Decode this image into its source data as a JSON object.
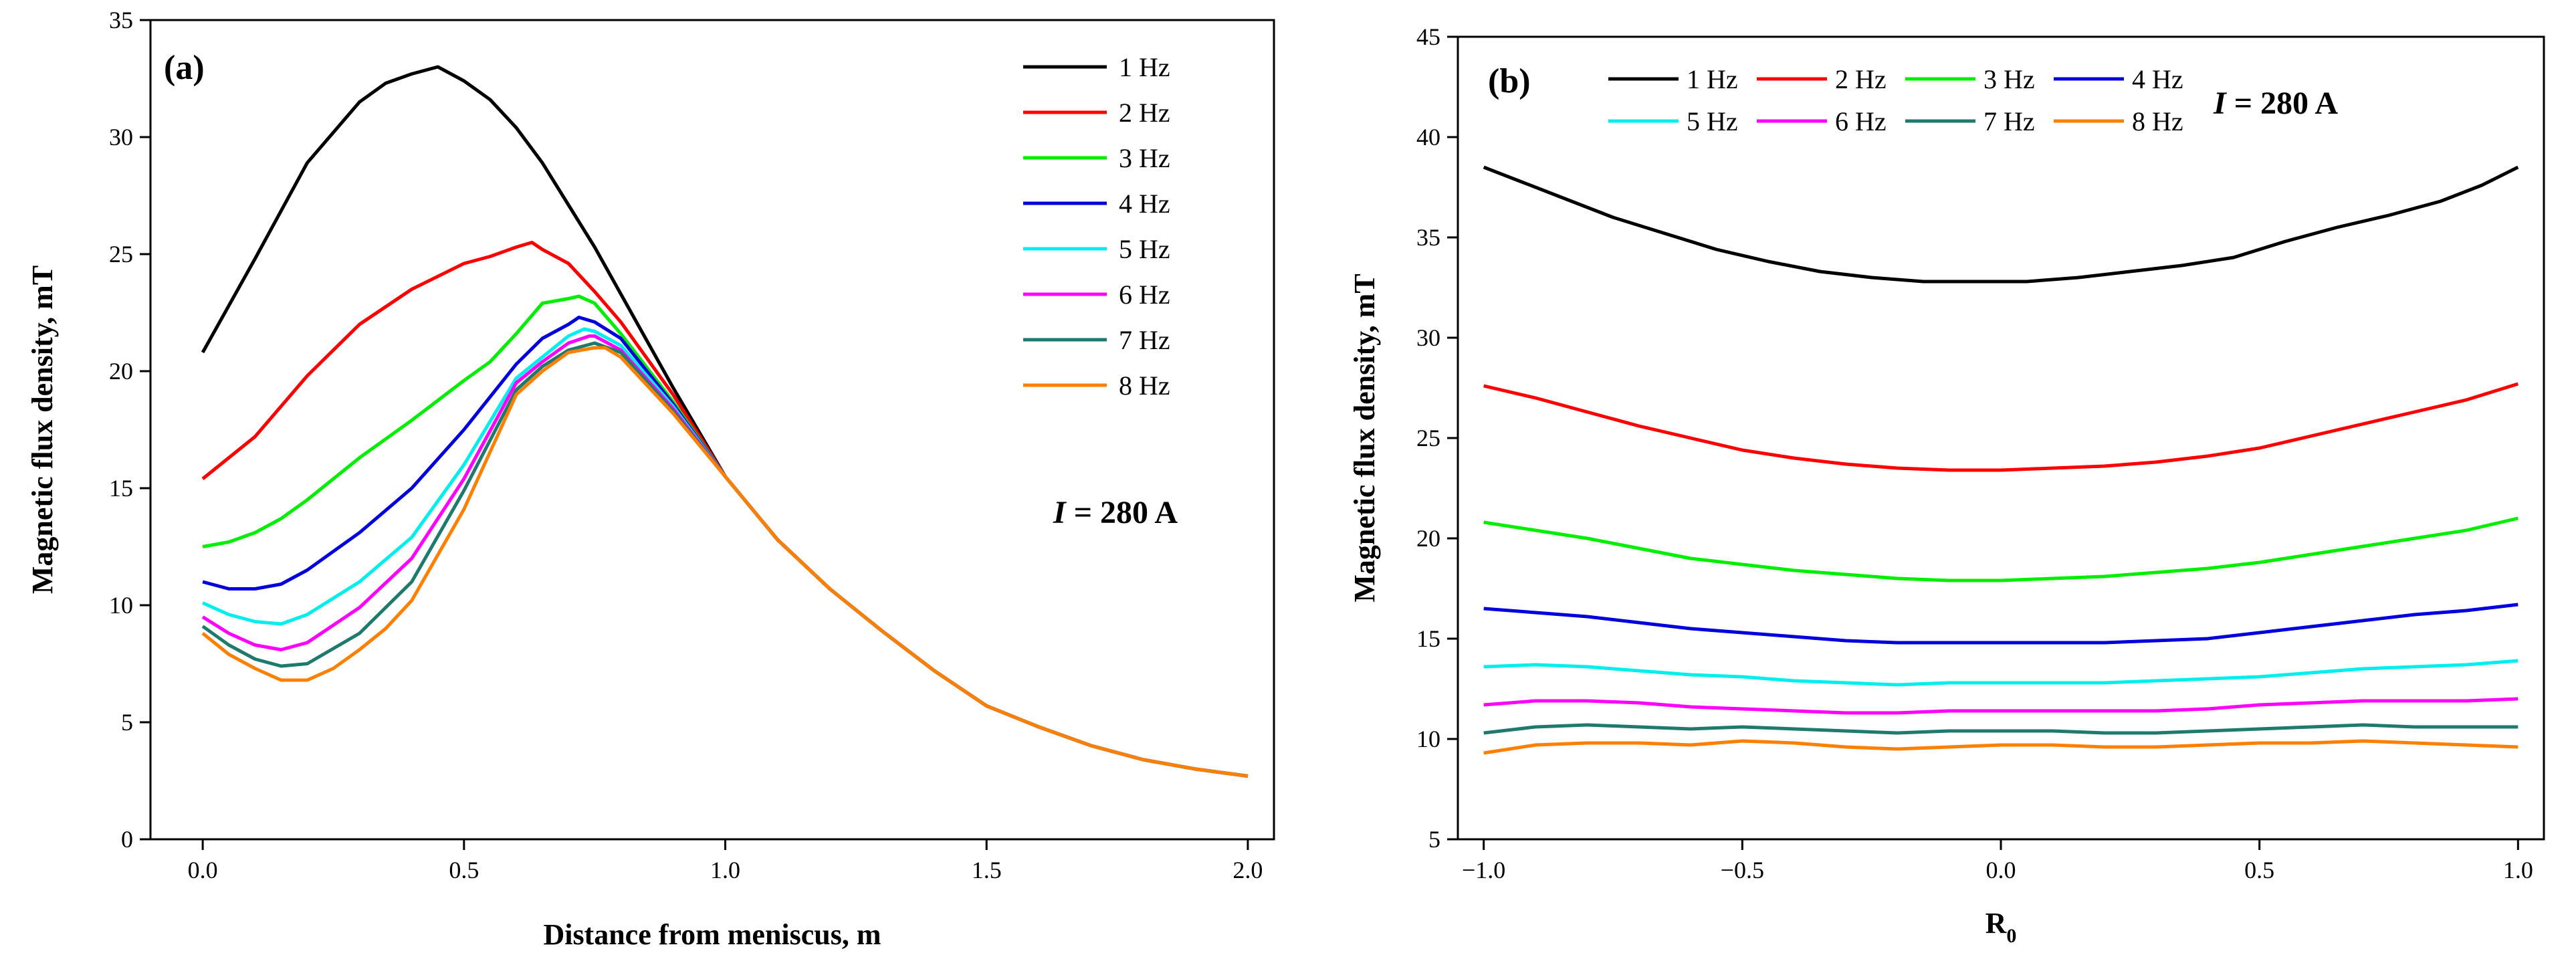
{
  "chart_data": [
    {
      "type": "line",
      "panel_label": "(a)",
      "xlabel": "Distance from meniscus, m",
      "ylabel": "Magnetic flux density, mT",
      "xlim": [
        -0.1,
        2.05
      ],
      "ylim": [
        0,
        35
      ],
      "xticks": [
        0.0,
        0.5,
        1.0,
        1.5,
        2.0
      ],
      "xtick_labels": [
        "0.0",
        "0.5",
        "1.0",
        "1.5",
        "2.0"
      ],
      "yticks": [
        0,
        5,
        10,
        15,
        20,
        25,
        30,
        35
      ],
      "ytick_labels": [
        "0",
        "5",
        "10",
        "15",
        "20",
        "25",
        "30",
        "35"
      ],
      "annotation": {
        "italic": "I",
        "rest": " = 280 A"
      },
      "legend_position": "top-right",
      "series": [
        {
          "name": "1 Hz",
          "color": "#000000",
          "x": [
            0,
            0.1,
            0.2,
            0.3,
            0.35,
            0.4,
            0.45,
            0.5,
            0.55,
            0.6,
            0.65,
            0.7,
            0.75,
            0.8,
            0.9,
            1.0,
            1.1,
            1.2,
            1.3,
            1.4,
            1.5,
            1.6,
            1.7,
            1.8,
            1.9,
            2.0
          ],
          "y": [
            20.8,
            24.8,
            28.9,
            31.5,
            32.3,
            32.7,
            33.0,
            32.4,
            31.6,
            30.4,
            28.9,
            27.1,
            25.3,
            23.3,
            19.3,
            15.5,
            12.8,
            10.7,
            8.9,
            7.2,
            5.7,
            4.8,
            4.0,
            3.4,
            3.0,
            2.7
          ]
        },
        {
          "name": "2 Hz",
          "color": "#ff0000",
          "x": [
            0,
            0.1,
            0.2,
            0.3,
            0.4,
            0.5,
            0.55,
            0.6,
            0.63,
            0.65,
            0.7,
            0.75,
            0.8,
            0.9,
            1.0,
            1.1,
            1.2,
            1.3,
            1.4,
            1.5,
            1.6,
            1.7,
            1.8,
            1.9,
            2.0
          ],
          "y": [
            15.4,
            17.2,
            19.8,
            22.0,
            23.5,
            24.6,
            24.9,
            25.3,
            25.5,
            25.2,
            24.6,
            23.4,
            22.1,
            19.0,
            15.5,
            12.8,
            10.7,
            8.9,
            7.2,
            5.7,
            4.8,
            4.0,
            3.4,
            3.0,
            2.7
          ]
        },
        {
          "name": "3 Hz",
          "color": "#00ee00",
          "x": [
            0,
            0.05,
            0.1,
            0.15,
            0.2,
            0.3,
            0.4,
            0.5,
            0.55,
            0.6,
            0.65,
            0.7,
            0.72,
            0.75,
            0.8,
            0.9,
            1.0,
            1.1,
            1.2,
            1.3,
            1.4,
            1.5,
            1.6,
            1.7,
            1.8,
            1.9,
            2.0
          ],
          "y": [
            12.5,
            12.7,
            13.1,
            13.7,
            14.5,
            16.3,
            17.9,
            19.6,
            20.4,
            21.6,
            22.9,
            23.1,
            23.2,
            22.9,
            21.6,
            18.7,
            15.5,
            12.8,
            10.7,
            8.9,
            7.2,
            5.7,
            4.8,
            4.0,
            3.4,
            3.0,
            2.7
          ]
        },
        {
          "name": "4 Hz",
          "color": "#0000dd",
          "x": [
            0,
            0.05,
            0.1,
            0.15,
            0.2,
            0.3,
            0.4,
            0.5,
            0.6,
            0.65,
            0.7,
            0.72,
            0.75,
            0.8,
            0.9,
            1.0,
            1.1,
            1.2,
            1.3,
            1.4,
            1.5,
            1.6,
            1.7,
            1.8,
            1.9,
            2.0
          ],
          "y": [
            11.0,
            10.7,
            10.7,
            10.9,
            11.5,
            13.1,
            15.0,
            17.5,
            20.3,
            21.4,
            22.0,
            22.3,
            22.1,
            21.4,
            18.6,
            15.5,
            12.8,
            10.7,
            8.9,
            7.2,
            5.7,
            4.8,
            4.0,
            3.4,
            3.0,
            2.7
          ]
        },
        {
          "name": "5 Hz",
          "color": "#00eeee",
          "x": [
            0,
            0.05,
            0.1,
            0.15,
            0.2,
            0.3,
            0.4,
            0.5,
            0.6,
            0.65,
            0.7,
            0.73,
            0.75,
            0.8,
            0.9,
            1.0,
            1.1,
            1.2,
            1.3,
            1.4,
            1.5,
            1.6,
            1.7,
            1.8,
            1.9,
            2.0
          ],
          "y": [
            10.1,
            9.6,
            9.3,
            9.2,
            9.6,
            11.0,
            12.9,
            16.0,
            19.7,
            20.6,
            21.5,
            21.8,
            21.7,
            21.1,
            18.5,
            15.5,
            12.8,
            10.7,
            8.9,
            7.2,
            5.7,
            4.8,
            4.0,
            3.4,
            3.0,
            2.7
          ]
        },
        {
          "name": "6 Hz",
          "color": "#ff00ff",
          "x": [
            0,
            0.05,
            0.1,
            0.15,
            0.2,
            0.3,
            0.4,
            0.5,
            0.6,
            0.65,
            0.7,
            0.74,
            0.75,
            0.8,
            0.9,
            1.0,
            1.1,
            1.2,
            1.3,
            1.4,
            1.5,
            1.6,
            1.7,
            1.8,
            1.9,
            2.0
          ],
          "y": [
            9.5,
            8.8,
            8.3,
            8.1,
            8.4,
            9.9,
            12.0,
            15.4,
            19.5,
            20.4,
            21.2,
            21.5,
            21.5,
            20.9,
            18.4,
            15.5,
            12.8,
            10.7,
            8.9,
            7.2,
            5.7,
            4.8,
            4.0,
            3.4,
            3.0,
            2.7
          ]
        },
        {
          "name": "7 Hz",
          "color": "#1f7a6e",
          "x": [
            0,
            0.05,
            0.1,
            0.15,
            0.2,
            0.3,
            0.4,
            0.5,
            0.6,
            0.65,
            0.7,
            0.75,
            0.8,
            0.9,
            1.0,
            1.1,
            1.2,
            1.3,
            1.4,
            1.5,
            1.6,
            1.7,
            1.8,
            1.9,
            2.0
          ],
          "y": [
            9.1,
            8.3,
            7.7,
            7.4,
            7.5,
            8.8,
            11.0,
            14.9,
            19.2,
            20.2,
            20.9,
            21.2,
            20.8,
            18.3,
            15.5,
            12.8,
            10.7,
            8.9,
            7.2,
            5.7,
            4.8,
            4.0,
            3.4,
            3.0,
            2.7
          ]
        },
        {
          "name": "8 Hz",
          "color": "#ff7f00",
          "x": [
            0,
            0.05,
            0.1,
            0.15,
            0.2,
            0.25,
            0.3,
            0.35,
            0.4,
            0.5,
            0.6,
            0.65,
            0.7,
            0.75,
            0.77,
            0.8,
            0.9,
            1.0,
            1.1,
            1.2,
            1.3,
            1.4,
            1.5,
            1.6,
            1.7,
            1.8,
            1.9,
            2.0
          ],
          "y": [
            8.8,
            7.9,
            7.3,
            6.8,
            6.8,
            7.3,
            8.1,
            9.0,
            10.2,
            14.1,
            19.0,
            20.0,
            20.8,
            21.0,
            21.0,
            20.6,
            18.2,
            15.5,
            12.8,
            10.7,
            8.9,
            7.2,
            5.7,
            4.8,
            4.0,
            3.4,
            3.0,
            2.7
          ]
        }
      ]
    },
    {
      "type": "line",
      "panel_label": "(b)",
      "xlabel": "R",
      "xlabel_subscript": "0",
      "ylabel": "Magnetic flux density, mT",
      "xlim": [
        -1.05,
        1.05
      ],
      "ylim": [
        5,
        45
      ],
      "xticks": [
        -1.0,
        -0.5,
        0.0,
        0.5,
        1.0
      ],
      "xtick_labels": [
        "−1.0",
        "−0.5",
        "0.0",
        "0.5",
        "1.0"
      ],
      "yticks": [
        5,
        10,
        15,
        20,
        25,
        30,
        35,
        40,
        45
      ],
      "ytick_labels": [
        "5",
        "10",
        "15",
        "20",
        "25",
        "30",
        "35",
        "40",
        "45"
      ],
      "annotation": {
        "italic": "I",
        "rest": " = 280 A"
      },
      "legend_position": "top-left",
      "series": [
        {
          "name": "1 Hz",
          "color": "#000000",
          "x": [
            -1.0,
            -0.93,
            -0.85,
            -0.75,
            -0.65,
            -0.55,
            -0.45,
            -0.35,
            -0.25,
            -0.15,
            -0.05,
            0.05,
            0.15,
            0.25,
            0.35,
            0.45,
            0.55,
            0.65,
            0.75,
            0.85,
            0.93,
            1.0
          ],
          "y": [
            38.5,
            37.8,
            37.0,
            36.0,
            35.2,
            34.4,
            33.8,
            33.3,
            33.0,
            32.8,
            32.8,
            32.8,
            33.0,
            33.3,
            33.6,
            34.0,
            34.8,
            35.5,
            36.1,
            36.8,
            37.6,
            38.5
          ]
        },
        {
          "name": "2 Hz",
          "color": "#ff0000",
          "x": [
            -1.0,
            -0.9,
            -0.8,
            -0.7,
            -0.6,
            -0.5,
            -0.4,
            -0.3,
            -0.2,
            -0.1,
            0.0,
            0.1,
            0.2,
            0.3,
            0.4,
            0.5,
            0.6,
            0.7,
            0.8,
            0.9,
            1.0
          ],
          "y": [
            27.6,
            27.0,
            26.3,
            25.6,
            25.0,
            24.4,
            24.0,
            23.7,
            23.5,
            23.4,
            23.4,
            23.5,
            23.6,
            23.8,
            24.1,
            24.5,
            25.1,
            25.7,
            26.3,
            26.9,
            27.7
          ]
        },
        {
          "name": "3 Hz",
          "color": "#00ee00",
          "x": [
            -1.0,
            -0.9,
            -0.8,
            -0.7,
            -0.6,
            -0.5,
            -0.4,
            -0.3,
            -0.2,
            -0.1,
            0.0,
            0.1,
            0.2,
            0.3,
            0.4,
            0.5,
            0.6,
            0.7,
            0.8,
            0.9,
            1.0
          ],
          "y": [
            20.8,
            20.4,
            20.0,
            19.5,
            19.0,
            18.7,
            18.4,
            18.2,
            18.0,
            17.9,
            17.9,
            18.0,
            18.1,
            18.3,
            18.5,
            18.8,
            19.2,
            19.6,
            20.0,
            20.4,
            21.0
          ]
        },
        {
          "name": "4 Hz",
          "color": "#0000dd",
          "x": [
            -1.0,
            -0.9,
            -0.8,
            -0.7,
            -0.6,
            -0.5,
            -0.4,
            -0.3,
            -0.2,
            -0.1,
            0.0,
            0.1,
            0.2,
            0.3,
            0.4,
            0.5,
            0.6,
            0.7,
            0.8,
            0.9,
            1.0
          ],
          "y": [
            16.5,
            16.3,
            16.1,
            15.8,
            15.5,
            15.3,
            15.1,
            14.9,
            14.8,
            14.8,
            14.8,
            14.8,
            14.8,
            14.9,
            15.0,
            15.3,
            15.6,
            15.9,
            16.2,
            16.4,
            16.7
          ]
        },
        {
          "name": "5 Hz",
          "color": "#00eeee",
          "x": [
            -1.0,
            -0.9,
            -0.8,
            -0.7,
            -0.6,
            -0.5,
            -0.4,
            -0.3,
            -0.2,
            -0.1,
            0.0,
            0.1,
            0.2,
            0.3,
            0.4,
            0.5,
            0.6,
            0.7,
            0.8,
            0.9,
            1.0
          ],
          "y": [
            13.6,
            13.7,
            13.6,
            13.4,
            13.2,
            13.1,
            12.9,
            12.8,
            12.7,
            12.8,
            12.8,
            12.8,
            12.8,
            12.9,
            13.0,
            13.1,
            13.3,
            13.5,
            13.6,
            13.7,
            13.9
          ]
        },
        {
          "name": "6 Hz",
          "color": "#ff00ff",
          "x": [
            -1.0,
            -0.9,
            -0.8,
            -0.7,
            -0.6,
            -0.5,
            -0.4,
            -0.3,
            -0.2,
            -0.1,
            0.0,
            0.1,
            0.2,
            0.3,
            0.4,
            0.5,
            0.6,
            0.7,
            0.8,
            0.9,
            1.0
          ],
          "y": [
            11.7,
            11.9,
            11.9,
            11.8,
            11.6,
            11.5,
            11.4,
            11.3,
            11.3,
            11.4,
            11.4,
            11.4,
            11.4,
            11.4,
            11.5,
            11.7,
            11.8,
            11.9,
            11.9,
            11.9,
            12.0
          ]
        },
        {
          "name": "7 Hz",
          "color": "#1f7a6e",
          "x": [
            -1.0,
            -0.9,
            -0.8,
            -0.7,
            -0.6,
            -0.5,
            -0.4,
            -0.3,
            -0.2,
            -0.1,
            0.0,
            0.1,
            0.2,
            0.3,
            0.4,
            0.5,
            0.6,
            0.7,
            0.8,
            0.9,
            1.0
          ],
          "y": [
            10.3,
            10.6,
            10.7,
            10.6,
            10.5,
            10.6,
            10.5,
            10.4,
            10.3,
            10.4,
            10.4,
            10.4,
            10.3,
            10.3,
            10.4,
            10.5,
            10.6,
            10.7,
            10.6,
            10.6,
            10.6
          ]
        },
        {
          "name": "8 Hz",
          "color": "#ff7f00",
          "x": [
            -1.0,
            -0.9,
            -0.8,
            -0.7,
            -0.6,
            -0.5,
            -0.4,
            -0.3,
            -0.2,
            -0.1,
            0.0,
            0.1,
            0.2,
            0.3,
            0.4,
            0.5,
            0.6,
            0.7,
            0.8,
            0.9,
            1.0
          ],
          "y": [
            9.3,
            9.7,
            9.8,
            9.8,
            9.7,
            9.9,
            9.8,
            9.6,
            9.5,
            9.6,
            9.7,
            9.7,
            9.6,
            9.6,
            9.7,
            9.8,
            9.8,
            9.9,
            9.8,
            9.7,
            9.6
          ]
        }
      ]
    }
  ]
}
